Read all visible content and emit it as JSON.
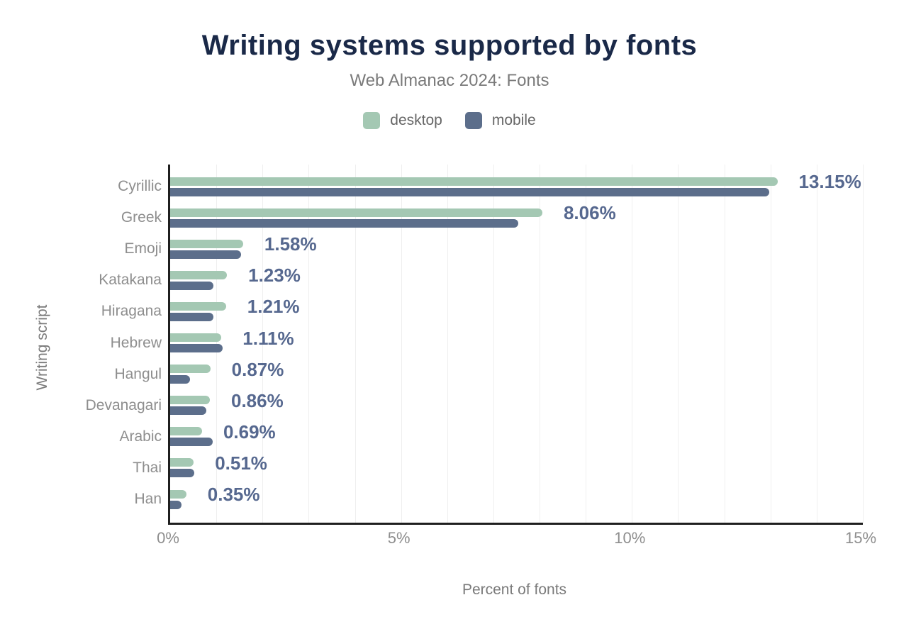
{
  "chart_data": {
    "type": "bar",
    "orientation": "horizontal",
    "title": "Writing systems supported by fonts",
    "subtitle": "Web Almanac 2024: Fonts",
    "xlabel": "Percent of fonts",
    "ylabel": "Writing script",
    "categories": [
      "Cyrillic",
      "Greek",
      "Emoji",
      "Katakana",
      "Hiragana",
      "Hebrew",
      "Hangul",
      "Devanagari",
      "Arabic",
      "Thai",
      "Han"
    ],
    "series": [
      {
        "name": "desktop",
        "color": "#a4c8b3",
        "values": [
          13.15,
          8.06,
          1.58,
          1.23,
          1.21,
          1.11,
          0.87,
          0.86,
          0.69,
          0.51,
          0.35
        ]
      },
      {
        "name": "mobile",
        "color": "#5c6e8b",
        "values": [
          12.97,
          7.54,
          1.54,
          0.94,
          0.94,
          1.13,
          0.43,
          0.79,
          0.92,
          0.52,
          0.25
        ]
      }
    ],
    "bar_labels": [
      "13.15%",
      "8.06%",
      "1.58%",
      "1.23%",
      "1.21%",
      "1.11%",
      "0.87%",
      "0.86%",
      "0.69%",
      "0.51%",
      "0.35%"
    ],
    "xlim": [
      0,
      15
    ],
    "xticks": {
      "values": [
        0,
        5,
        10,
        15
      ],
      "labels": [
        "0%",
        "5%",
        "10%",
        "15%"
      ]
    },
    "grid_step": 1,
    "grid_on": true,
    "legend_position": "top",
    "colors": {
      "title": "#1a2948",
      "subtitle": "#7a7a7a",
      "value_label": "#56688f",
      "axis_text": "#8e8e8e",
      "axis_line": "#1f1f1f",
      "gridline": "#efefef",
      "background": "#ffffff"
    }
  }
}
